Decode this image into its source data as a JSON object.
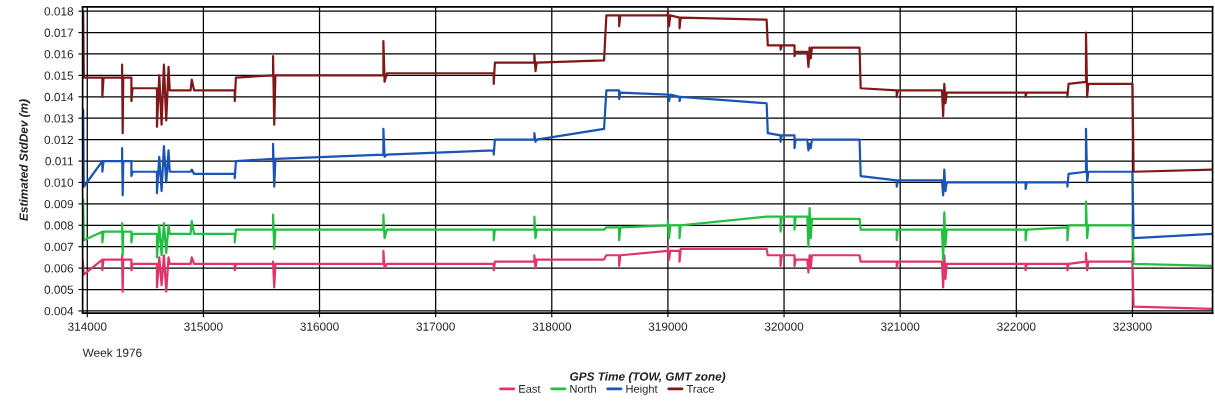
{
  "chart_data": {
    "type": "line",
    "xlabel": "GPS Time (TOW, GMT zone)",
    "ylabel": "Estimated StdDev (m)",
    "annotations": [
      "Week 1976"
    ],
    "x": [
      313960,
      313965,
      313970,
      314130,
      314130,
      314140,
      314300,
      314300,
      314305,
      314310,
      314380,
      314380,
      314390,
      314600,
      314600,
      314620,
      314640,
      314660,
      314680,
      314700,
      314710,
      314890,
      314900,
      314920,
      315270,
      315270,
      315280,
      315600,
      315600,
      315610,
      315620,
      316550,
      316550,
      316560,
      316580,
      317500,
      317500,
      317510,
      317850,
      317850,
      317860,
      317870,
      318450,
      318470,
      318580,
      318580,
      318590,
      319000,
      319000,
      319010,
      319020,
      319100,
      319100,
      319110,
      319850,
      319860,
      319970,
      319970,
      319980,
      320090,
      320090,
      320100,
      320200,
      320210,
      320220,
      320230,
      320240,
      320650,
      320660,
      320970,
      320970,
      320980,
      321360,
      321370,
      321380,
      321390,
      321400,
      322080,
      322080,
      322090,
      322440,
      322440,
      322450,
      322600,
      322600,
      322610,
      322620,
      323000,
      323010,
      323690
    ],
    "series": [
      {
        "name": "East",
        "color": "#e0356b",
        "values": [
          0.0064,
          null,
          0.0057,
          0.0064,
          0.0059,
          0.0064,
          0.0064,
          0.0066,
          0.0049,
          0.0064,
          0.0064,
          0.0059,
          0.0062,
          0.0062,
          0.0051,
          0.0065,
          0.0052,
          0.0066,
          0.0049,
          0.0065,
          0.0062,
          0.0062,
          0.0065,
          0.0062,
          0.0062,
          0.0059,
          0.0062,
          0.0062,
          0.0063,
          0.0051,
          0.0062,
          0.0062,
          0.0068,
          0.006,
          0.0062,
          0.0062,
          0.0059,
          0.0063,
          0.0063,
          0.0066,
          0.006,
          0.0064,
          0.0064,
          0.0066,
          0.0066,
          0.0061,
          0.0066,
          0.0068,
          0.007,
          0.0064,
          0.0068,
          0.0068,
          0.0063,
          0.0069,
          0.0069,
          0.0066,
          0.0066,
          0.0061,
          0.0066,
          0.0066,
          0.0061,
          0.0064,
          0.0064,
          0.0058,
          0.0066,
          0.006,
          0.0066,
          0.0066,
          0.0063,
          0.0063,
          0.006,
          0.0063,
          0.0063,
          0.0051,
          0.0066,
          0.0055,
          0.0062,
          0.0062,
          0.0059,
          0.0062,
          0.0062,
          0.0059,
          0.0062,
          0.0063,
          0.0067,
          0.0059,
          0.0063,
          0.0063,
          0.0042,
          0.0041
        ]
      },
      {
        "name": "North",
        "color": "#22c040",
        "values": [
          0.0077,
          0.0092,
          0.0073,
          0.0077,
          0.0072,
          0.0077,
          0.0077,
          0.0081,
          0.0066,
          0.0077,
          0.0077,
          0.0072,
          0.0076,
          0.0076,
          0.0065,
          0.008,
          0.0066,
          0.0081,
          0.0067,
          0.008,
          0.0076,
          0.0076,
          0.0082,
          0.0076,
          0.0076,
          0.0072,
          0.0078,
          0.0078,
          0.0085,
          0.0069,
          0.0078,
          0.0078,
          0.0085,
          0.0074,
          0.0078,
          0.0078,
          0.0073,
          0.0078,
          0.0078,
          0.0084,
          0.0074,
          0.0078,
          0.0078,
          0.0079,
          0.0079,
          0.0073,
          0.0079,
          0.008,
          0.0082,
          0.0074,
          0.008,
          0.008,
          0.0074,
          0.008,
          0.0084,
          0.0084,
          0.0084,
          0.0077,
          0.0084,
          0.0084,
          0.0078,
          0.0084,
          0.0084,
          0.007,
          0.0088,
          0.0074,
          0.0083,
          0.0083,
          0.0078,
          0.0078,
          0.0073,
          0.0078,
          0.0078,
          0.0064,
          0.0086,
          0.0071,
          0.0078,
          0.0078,
          0.0073,
          0.0078,
          0.0079,
          0.0073,
          0.008,
          0.008,
          0.0091,
          0.0074,
          0.008,
          0.008,
          0.0062,
          0.0061
        ]
      },
      {
        "name": "Height",
        "color": "#1a55b5",
        "values": [
          0.011,
          0.0134,
          0.0098,
          0.011,
          0.0105,
          0.011,
          0.011,
          0.0116,
          0.0094,
          0.011,
          0.011,
          0.0103,
          0.0105,
          0.0105,
          0.0095,
          0.0112,
          0.0096,
          0.0117,
          0.01,
          0.0115,
          0.0105,
          0.0105,
          0.0106,
          0.0104,
          0.0104,
          0.0102,
          0.011,
          0.0111,
          0.0118,
          0.0098,
          0.0111,
          0.0113,
          0.0125,
          0.0112,
          0.0113,
          0.0115,
          0.0113,
          0.012,
          0.012,
          0.0123,
          0.0119,
          0.012,
          0.0125,
          0.0143,
          0.0143,
          0.0139,
          0.0142,
          0.0141,
          0.0141,
          0.0138,
          0.0141,
          0.014,
          0.0138,
          0.014,
          0.0137,
          0.0123,
          0.0122,
          0.0119,
          0.0122,
          0.0122,
          0.0116,
          0.012,
          0.012,
          0.0115,
          0.0118,
          0.0116,
          0.012,
          0.012,
          0.0103,
          0.0101,
          0.0098,
          0.0101,
          0.0101,
          0.0094,
          0.0106,
          0.0096,
          0.01,
          0.01,
          0.0097,
          0.01,
          0.01,
          0.0098,
          0.0104,
          0.0105,
          0.0125,
          0.01,
          0.0105,
          0.0105,
          0.0074,
          0.0076
        ]
      },
      {
        "name": "Trace",
        "color": "#801818",
        "values": [
          0.0149,
          0.018,
          0.0149,
          0.0149,
          0.014,
          0.0149,
          0.0149,
          0.0155,
          0.0123,
          0.0149,
          0.0149,
          0.0138,
          0.0144,
          0.0144,
          0.0126,
          0.015,
          0.0127,
          0.0155,
          0.0129,
          0.0154,
          0.0143,
          0.0143,
          0.0148,
          0.0143,
          0.0143,
          0.0138,
          0.0149,
          0.015,
          0.0159,
          0.0127,
          0.015,
          0.015,
          0.0166,
          0.0147,
          0.0151,
          0.0151,
          0.0146,
          0.0156,
          0.0156,
          0.016,
          0.0152,
          0.0156,
          0.0157,
          0.0178,
          0.0178,
          0.0173,
          0.0178,
          0.0178,
          0.018,
          0.0173,
          0.0178,
          0.0177,
          0.0172,
          0.0177,
          0.0176,
          0.0164,
          0.0164,
          0.0162,
          0.0164,
          0.0164,
          0.0159,
          0.0161,
          0.0161,
          0.0154,
          0.0163,
          0.0158,
          0.0163,
          0.0163,
          0.0144,
          0.0143,
          0.014,
          0.0143,
          0.0143,
          0.0131,
          0.0146,
          0.0137,
          0.0142,
          0.0142,
          0.014,
          0.0142,
          0.0142,
          0.014,
          0.0146,
          0.0147,
          0.017,
          0.014,
          0.0146,
          0.0146,
          0.0105,
          0.0106
        ]
      }
    ],
    "xlim": [
      313960,
      323690
    ],
    "ylim": [
      0.0039,
      0.0182
    ],
    "xticks": [
      314000,
      315000,
      316000,
      317000,
      318000,
      319000,
      320000,
      321000,
      322000,
      323000
    ],
    "yticks": [
      0.004,
      0.005,
      0.006,
      0.007,
      0.008,
      0.009,
      {
        "value": 0.01,
        "label": "0.010"
      },
      0.011,
      0.012,
      0.013,
      0.014,
      0.015,
      0.016,
      0.017,
      0.018
    ],
    "grid": true,
    "legend": "bottom",
    "marker": "none",
    "line_style": "solid"
  }
}
